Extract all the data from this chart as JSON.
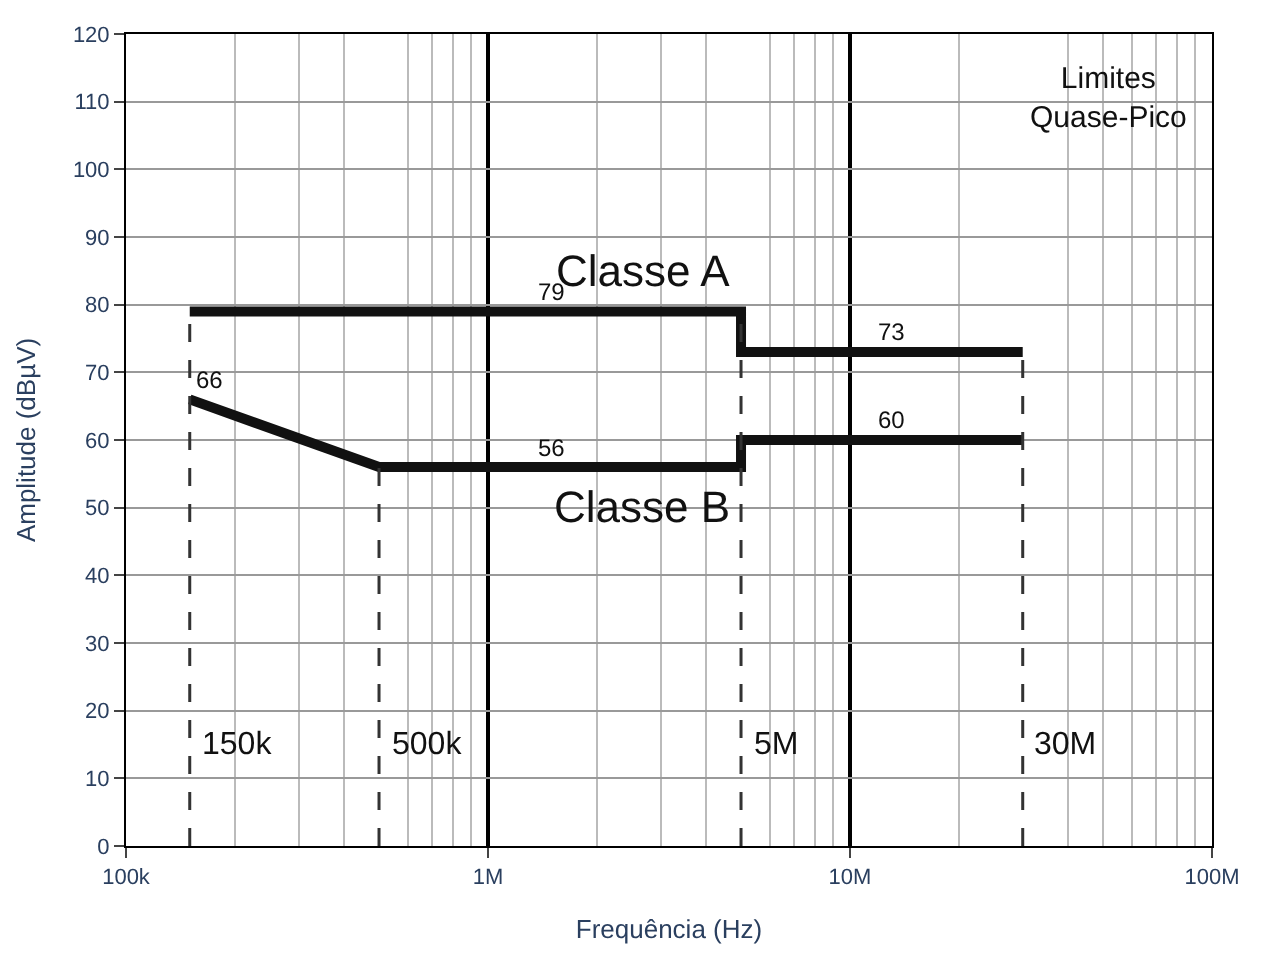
{
  "chart_data": {
    "type": "line",
    "xlabel": "Frequência (Hz)",
    "ylabel": "Amplitude (dBµV)",
    "series": [
      {
        "name": "Classe A",
        "color": "#111111",
        "x": [
          150000,
          5000000,
          5000000,
          30000000
        ],
        "values": [
          79,
          79,
          73,
          73
        ]
      },
      {
        "name": "Classe B",
        "color": "#111111",
        "x": [
          150000,
          500000,
          5000000,
          5000000,
          30000000
        ],
        "values": [
          66,
          56,
          56,
          60,
          60
        ]
      }
    ],
    "annotations": [
      "Limites\nQuase-Pico",
      {
        "text": "79",
        "x": 1500000,
        "y": 79
      },
      {
        "text": "73",
        "x": 13000000,
        "y": 73
      },
      {
        "text": "66",
        "x": 170000,
        "y": 66
      },
      {
        "text": "56",
        "x": 1500000,
        "y": 56
      },
      {
        "text": "60",
        "x": 13000000,
        "y": 60
      }
    ],
    "ref_lines": [
      {
        "axis": "x",
        "value": 150000,
        "label": "150k",
        "line_style": "dashed"
      },
      {
        "axis": "x",
        "value": 500000,
        "label": "500k",
        "line_style": "dashed"
      },
      {
        "axis": "x",
        "value": 5000000,
        "label": "5M",
        "line_style": "dashed"
      },
      {
        "axis": "x",
        "value": 30000000,
        "label": "30M",
        "line_style": "dashed"
      }
    ],
    "log": "x",
    "xlim": [
      100000,
      100000000
    ],
    "xticks": [
      {
        "value": 100000,
        "label": "100k"
      },
      {
        "value": 1000000,
        "label": "1M"
      },
      {
        "value": 10000000,
        "label": "10M"
      },
      {
        "value": 100000000,
        "label": "100M"
      }
    ],
    "ylim": [
      0,
      120
    ],
    "yticks": [
      0,
      10,
      20,
      30,
      40,
      50,
      60,
      70,
      80,
      90,
      100,
      110,
      120
    ],
    "grid": true,
    "legend": false,
    "marker": "none",
    "line_style": "solid"
  }
}
